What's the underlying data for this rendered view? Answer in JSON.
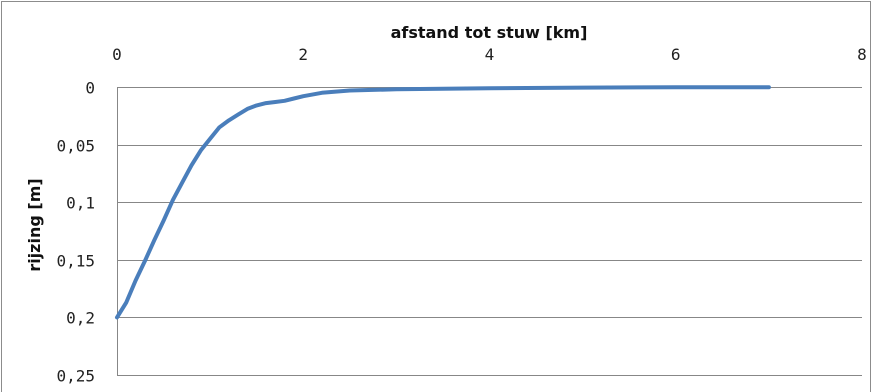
{
  "chart_data": {
    "type": "line",
    "title": "",
    "xlabel": "afstand tot stuw [km]",
    "ylabel": "rijzing [m]",
    "xlim": [
      0,
      8
    ],
    "ylim": [
      0,
      0.25
    ],
    "y_inverted": true,
    "x_axis_position": "top",
    "grid": "horizontal",
    "x_ticks": [
      "0",
      "2",
      "4",
      "6",
      "8"
    ],
    "y_ticks": [
      "0",
      "0,05",
      "0,1",
      "0,15",
      "0,2",
      "0,25"
    ],
    "series_color": "#4a7ebb",
    "series": [
      {
        "points": [
          [
            0,
            0.2
          ],
          [
            0.1,
            0.187
          ],
          [
            0.2,
            0.168
          ],
          [
            0.3,
            0.151
          ],
          [
            0.4,
            0.133
          ],
          [
            0.5,
            0.116
          ],
          [
            0.6,
            0.098
          ],
          [
            0.7,
            0.083
          ],
          [
            0.8,
            0.068
          ],
          [
            0.9,
            0.055
          ],
          [
            1.0,
            0.045
          ],
          [
            1.1,
            0.035
          ],
          [
            1.2,
            0.029
          ],
          [
            1.3,
            0.024
          ],
          [
            1.4,
            0.019
          ],
          [
            1.5,
            0.016
          ],
          [
            1.6,
            0.014
          ],
          [
            1.7,
            0.013
          ],
          [
            1.8,
            0.012
          ],
          [
            1.9,
            0.01
          ],
          [
            2.0,
            0.008
          ],
          [
            2.2,
            0.005
          ],
          [
            2.5,
            0.003
          ],
          [
            3.0,
            0.002
          ],
          [
            4.0,
            0.001
          ],
          [
            5.0,
            0.0005
          ],
          [
            6.0,
            0.0003
          ],
          [
            7.0,
            0.0002
          ]
        ]
      }
    ]
  }
}
